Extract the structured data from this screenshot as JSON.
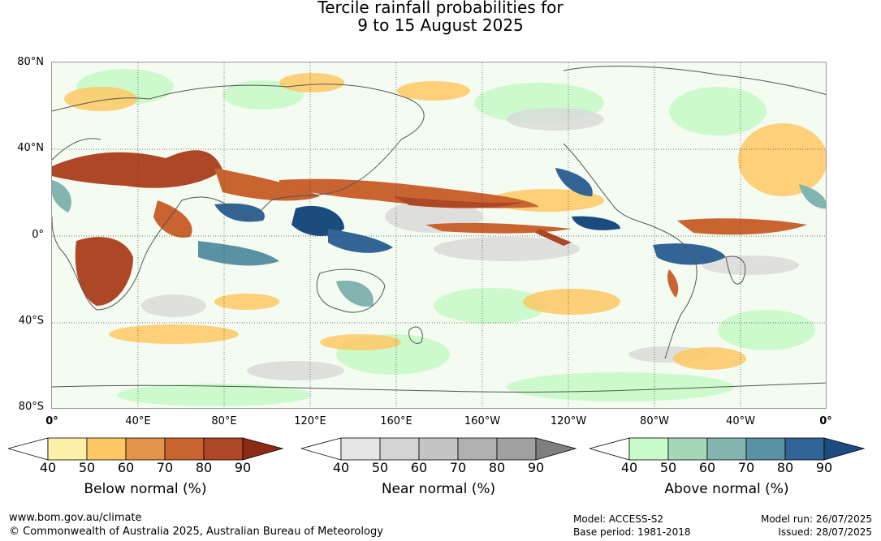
{
  "title": {
    "line1": "Tercile rainfall probabilities for",
    "line2": "9 to 15 August 2025"
  },
  "map": {
    "lat_labels": [
      "80°N",
      "40°N",
      "0°",
      "40°S",
      "80°S"
    ],
    "lon_labels": [
      "0°",
      "40°E",
      "80°E",
      "120°E",
      "160°E",
      "160°W",
      "120°W",
      "80°W",
      "40°W",
      "0°"
    ]
  },
  "legends": [
    {
      "name": "below",
      "title": "Below normal (%)",
      "ticks": [
        "40",
        "50",
        "60",
        "70",
        "80",
        "90"
      ],
      "colors": [
        "#ffffff",
        "#fff0a8",
        "#fec864",
        "#e2944a",
        "#c9632f",
        "#ad4726",
        "#8c2b15"
      ]
    },
    {
      "name": "near",
      "title": "Near normal (%)",
      "ticks": [
        "40",
        "50",
        "60",
        "70",
        "80",
        "90"
      ],
      "colors": [
        "#ffffff",
        "#e6e6e6",
        "#d4d4d4",
        "#c5c5c5",
        "#b0b0b0",
        "#a0a0a0",
        "#7f7f7f"
      ]
    },
    {
      "name": "above",
      "title": "Above normal (%)",
      "ticks": [
        "40",
        "50",
        "60",
        "70",
        "80",
        "90"
      ],
      "colors": [
        "#ffffff",
        "#c9fac9",
        "#a5d8b8",
        "#82b4b0",
        "#5a92a4",
        "#326496",
        "#1b4c80"
      ]
    }
  ],
  "footer": {
    "url": "www.bom.gov.au/climate",
    "copyright": "© Commonwealth of Australia 2025, Australian Bureau of Meteorology",
    "model": "Model: ACCESS-S2",
    "base_period": "Base period: 1981-2018",
    "model_run": "Model run: 26/07/2025",
    "issued": "Issued: 28/07/2025"
  }
}
